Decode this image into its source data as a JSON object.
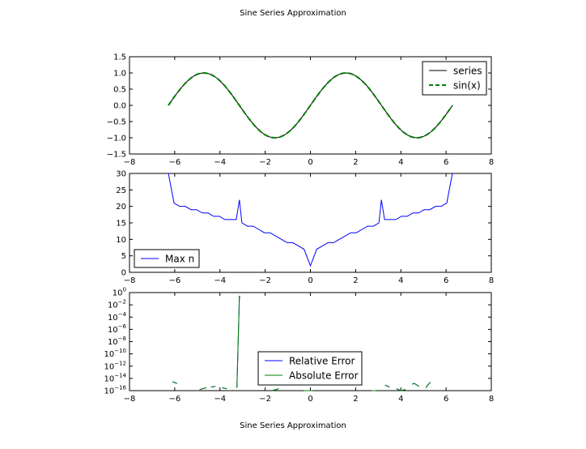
{
  "figure": {
    "title_top": "Sine Series Approximation",
    "title_bottom": "Sine Series Approximation"
  },
  "chart_data": [
    {
      "type": "line",
      "xlim": [
        -8,
        8
      ],
      "ylim": [
        -1.5,
        1.5
      ],
      "xticks": [
        -8,
        -6,
        -4,
        -2,
        0,
        2,
        4,
        6,
        8
      ],
      "yticks": [
        -1.5,
        -1.0,
        -0.5,
        0.0,
        0.5,
        1.0,
        1.5
      ],
      "xtick_labels": [
        "−8",
        "−6",
        "−4",
        "−2",
        "0",
        "2",
        "4",
        "6",
        "8"
      ],
      "ytick_labels": [
        "−1.5",
        "−1.0",
        "−0.5",
        "0.0",
        "0.5",
        "1.0",
        "1.5"
      ],
      "x_range": [
        -6.2832,
        6.2832
      ],
      "legend_position": "upper-right",
      "series": [
        {
          "name": "series",
          "color": "#000000",
          "style": "solid",
          "function": "sin"
        },
        {
          "name": "sin(x)",
          "color": "#007f00",
          "style": "dashed",
          "function": "sin"
        }
      ]
    },
    {
      "type": "line",
      "xlim": [
        -8,
        8
      ],
      "ylim": [
        0,
        30
      ],
      "xticks": [
        -8,
        -6,
        -4,
        -2,
        0,
        2,
        4,
        6,
        8
      ],
      "yticks": [
        0,
        5,
        10,
        15,
        20,
        25,
        30
      ],
      "xtick_labels": [
        "−8",
        "−6",
        "−4",
        "−2",
        "0",
        "2",
        "4",
        "6",
        "8"
      ],
      "ytick_labels": [
        "0",
        "5",
        "10",
        "15",
        "20",
        "25",
        "30"
      ],
      "legend_position": "lower-left",
      "series": [
        {
          "name": "Max n",
          "color": "#0000ff",
          "style": "solid",
          "x": [
            -6.28,
            -6.03,
            -5.78,
            -5.53,
            -5.28,
            -5.03,
            -4.78,
            -4.53,
            -4.28,
            -4.03,
            -3.78,
            -3.53,
            -3.28,
            -3.14,
            -3.03,
            -2.78,
            -2.53,
            -2.28,
            -2.03,
            -1.78,
            -1.53,
            -1.28,
            -1.03,
            -0.78,
            -0.53,
            -0.28,
            0.0,
            0.28,
            0.53,
            0.78,
            1.03,
            1.28,
            1.53,
            1.78,
            2.03,
            2.28,
            2.53,
            2.78,
            3.03,
            3.14,
            3.28,
            3.53,
            3.78,
            4.03,
            4.28,
            4.53,
            4.78,
            5.03,
            5.28,
            5.53,
            5.78,
            6.03,
            6.28
          ],
          "y": [
            30,
            21,
            20,
            20,
            19,
            19,
            18,
            18,
            17,
            17,
            16,
            16,
            16,
            22,
            15,
            14,
            14,
            13,
            12,
            12,
            11,
            10,
            9,
            9,
            8,
            7,
            2,
            7,
            8,
            9,
            9,
            10,
            11,
            12,
            12,
            13,
            14,
            14,
            15,
            22,
            16,
            16,
            16,
            17,
            17,
            18,
            18,
            19,
            19,
            20,
            20,
            21,
            30
          ]
        }
      ]
    },
    {
      "type": "line",
      "scale_y": "log",
      "xlim": [
        -8,
        8
      ],
      "ylim": [
        1e-16,
        1
      ],
      "xticks": [
        -8,
        -6,
        -4,
        -2,
        0,
        2,
        4,
        6,
        8
      ],
      "xtick_labels": [
        "−8",
        "−6",
        "−4",
        "−2",
        "0",
        "2",
        "4",
        "6",
        "8"
      ],
      "yticks_exp": [
        0,
        -2,
        -4,
        -6,
        -8,
        -10,
        -12,
        -14,
        -16
      ],
      "ytick_base": "10",
      "legend_position": "lower-center",
      "series": [
        {
          "name": "Relative Error",
          "color": "#0000ff",
          "style": "solid",
          "segments": [
            [
              [
                -6.1,
                3e-15
              ],
              [
                -5.9,
                1.5e-15
              ]
            ],
            [
              [
                -4.9,
                1.5e-16
              ],
              [
                -4.6,
                3e-16
              ]
            ],
            [
              [
                -4.4,
                4e-16
              ],
              [
                -4.2,
                5e-16
              ]
            ],
            [
              [
                -3.9,
                3e-16
              ],
              [
                -3.7,
                2e-16
              ]
            ],
            [
              [
                -3.25,
                3e-16
              ],
              [
                -3.14,
                0.25
              ],
              [
                -3.1,
                0.25
              ]
            ],
            [
              [
                -1.7,
                5e-17
              ],
              [
                -1.4,
                2e-16
              ]
            ],
            [
              [
                -0.3,
                8e-17
              ],
              [
                0.1,
                5e-17
              ]
            ],
            [
              [
                2.7,
                5e-17
              ],
              [
                2.9,
                8e-17
              ]
            ],
            [
              [
                3.3,
                8e-16
              ],
              [
                3.5,
                4e-16
              ]
            ],
            [
              [
                3.8,
                2e-16
              ],
              [
                4.0,
                5e-17
              ],
              [
                4.2,
                1.5e-16
              ]
            ],
            [
              [
                4.5,
                1.2e-15
              ],
              [
                4.6,
                1.5e-15
              ],
              [
                4.8,
                5e-16
              ]
            ],
            [
              [
                5.1,
                3e-16
              ],
              [
                5.3,
                2.5e-15
              ]
            ]
          ]
        },
        {
          "name": "Absolute Error",
          "color": "#007f00",
          "style": "solid",
          "segments": [
            [
              [
                -6.1,
                3e-15
              ],
              [
                -5.9,
                1.5e-15
              ]
            ],
            [
              [
                -4.9,
                1.5e-16
              ],
              [
                -4.6,
                3e-16
              ]
            ],
            [
              [
                -4.4,
                4e-16
              ],
              [
                -4.2,
                5e-16
              ]
            ],
            [
              [
                -3.9,
                3e-16
              ],
              [
                -3.7,
                2e-16
              ]
            ],
            [
              [
                -3.25,
                3e-16
              ],
              [
                -3.14,
                0.25
              ],
              [
                -3.1,
                0.25
              ]
            ],
            [
              [
                -1.7,
                5e-17
              ],
              [
                -1.4,
                2e-16
              ]
            ],
            [
              [
                -0.3,
                8e-17
              ],
              [
                0.1,
                5e-17
              ]
            ],
            [
              [
                2.7,
                5e-17
              ],
              [
                2.9,
                8e-17
              ]
            ],
            [
              [
                3.3,
                8e-16
              ],
              [
                3.5,
                4e-16
              ]
            ],
            [
              [
                3.8,
                2e-16
              ],
              [
                4.0,
                5e-17
              ],
              [
                4.2,
                1.5e-16
              ]
            ],
            [
              [
                4.5,
                1.2e-15
              ],
              [
                4.6,
                1.5e-15
              ],
              [
                4.8,
                5e-16
              ]
            ],
            [
              [
                5.1,
                3e-16
              ],
              [
                5.3,
                2.5e-15
              ]
            ]
          ]
        }
      ]
    }
  ]
}
